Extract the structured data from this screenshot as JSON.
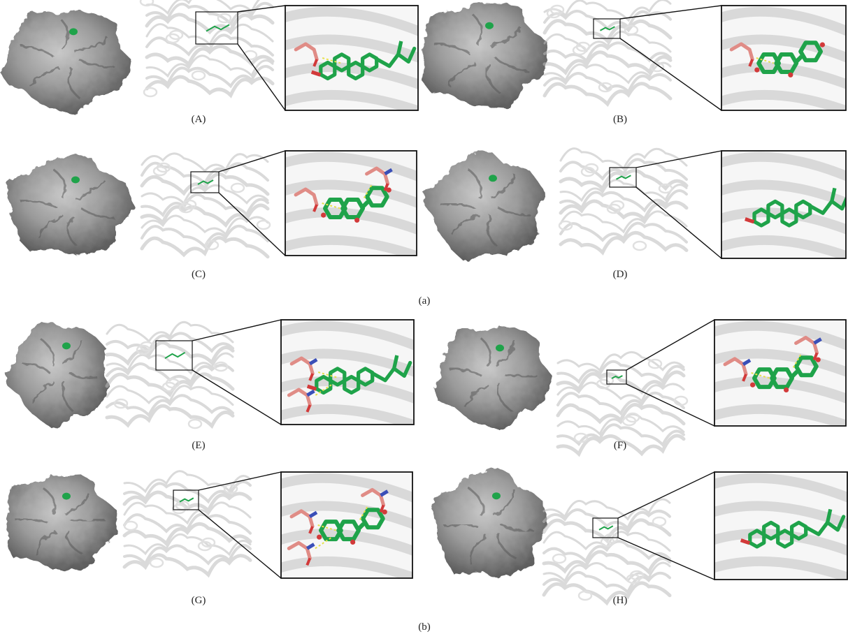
{
  "groups": [
    {
      "label": "(a)"
    },
    {
      "label": "(b)"
    }
  ],
  "panels": [
    {
      "label": "(A)",
      "surface": "protein-surface",
      "ligand_color": "#1fa34a",
      "residue_color": "#e08c86",
      "ligand": "steroid"
    },
    {
      "label": "(B)",
      "surface": "protein-surface",
      "ligand_color": "#1fa34a",
      "residue_color": "#e08c86",
      "ligand": "flavonoid"
    },
    {
      "label": "(C)",
      "surface": "protein-surface",
      "ligand_color": "#1fa34a",
      "residue_color": "#e08c86",
      "ligand": "flavonoid"
    },
    {
      "label": "(D)",
      "surface": "protein-surface",
      "ligand_color": "#1fa34a",
      "residue_color": "#e08c86",
      "ligand": "steroid"
    },
    {
      "label": "(E)",
      "surface": "protein-surface",
      "ligand_color": "#1fa34a",
      "residue_color": "#e08c86",
      "ligand": "steroid"
    },
    {
      "label": "(F)",
      "surface": "protein-surface",
      "ligand_color": "#1fa34a",
      "residue_color": "#e08c86",
      "ligand": "flavonoid"
    },
    {
      "label": "(G)",
      "surface": "protein-surface",
      "ligand_color": "#1fa34a",
      "residue_color": "#e08c86",
      "ligand": "flavonoid"
    },
    {
      "label": "(H)",
      "surface": "protein-surface",
      "ligand_color": "#1fa34a",
      "residue_color": "#e08c86",
      "ligand": "steroid"
    }
  ]
}
